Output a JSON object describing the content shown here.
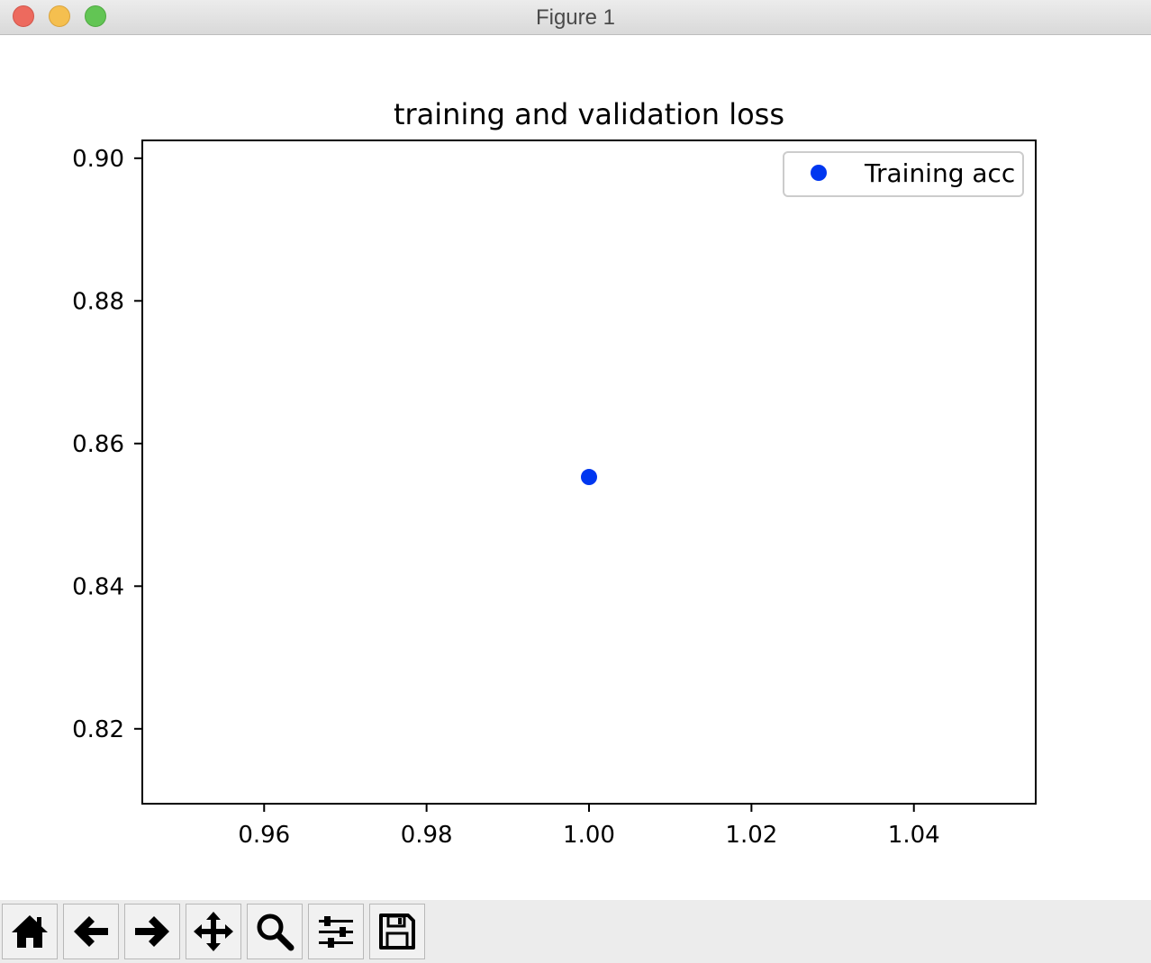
{
  "window": {
    "title": "Figure 1"
  },
  "toolbar": {
    "buttons": [
      {
        "name": "home-button",
        "icon": "home-icon"
      },
      {
        "name": "back-button",
        "icon": "arrow-left-icon"
      },
      {
        "name": "forward-button",
        "icon": "arrow-right-icon"
      },
      {
        "name": "pan-button",
        "icon": "move-icon"
      },
      {
        "name": "zoom-button",
        "icon": "search-icon"
      },
      {
        "name": "configure-subplots-button",
        "icon": "sliders-icon"
      },
      {
        "name": "save-button",
        "icon": "floppy-disk-icon"
      }
    ]
  },
  "chart_data": {
    "type": "scatter",
    "title": "training and validation loss",
    "xlabel": "",
    "ylabel": "",
    "xlim": [
      0.945,
      1.055
    ],
    "ylim": [
      0.8095,
      0.9025
    ],
    "xticks": [
      0.96,
      0.98,
      1.0,
      1.02,
      1.04
    ],
    "xtick_labels": [
      "0.96",
      "0.98",
      "1.00",
      "1.02",
      "1.04"
    ],
    "yticks": [
      0.82,
      0.84,
      0.86,
      0.88,
      0.9
    ],
    "ytick_labels": [
      "0.82",
      "0.84",
      "0.86",
      "0.88",
      "0.90"
    ],
    "grid": false,
    "legend_position": "upper right",
    "series": [
      {
        "name": "Training acc",
        "color": "#0037f0",
        "marker": "circle",
        "x": [
          1.0
        ],
        "y": [
          0.8553
        ]
      }
    ]
  }
}
